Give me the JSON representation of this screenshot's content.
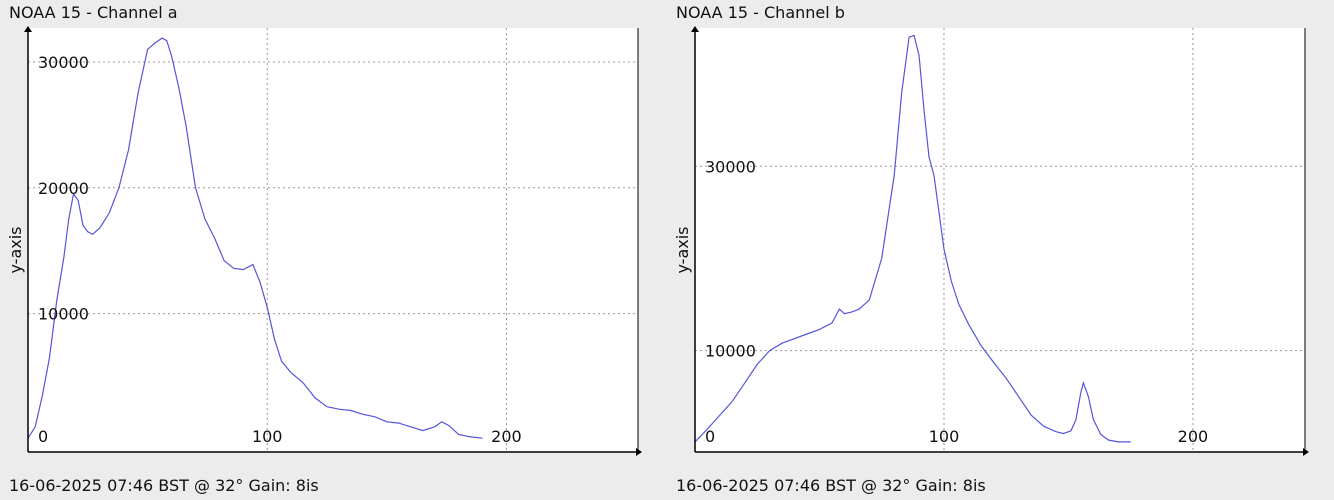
{
  "colors": {
    "background": "#ececec",
    "plot_bg": "#ffffff",
    "series": "#5555dd",
    "grid": "#999999",
    "axis": "#000000"
  },
  "chart_data": [
    {
      "type": "line",
      "title": "NOAA 15 - Channel a",
      "xlabel": "",
      "ylabel": "y-axis",
      "footer": "16-06-2025 07:46 BST @ 32° Gain: 8is",
      "xlim": [
        0,
        255
      ],
      "ylim": [
        -1000,
        32700
      ],
      "x_ticks": [
        0,
        100,
        200
      ],
      "y_ticks": [
        10000,
        20000,
        30000
      ],
      "grid": true,
      "series": [
        {
          "x": [
            0,
            3,
            6,
            9,
            12,
            15,
            17,
            19,
            21,
            23,
            25,
            27,
            30,
            34,
            38,
            42,
            46,
            50,
            53,
            56,
            58,
            60,
            63,
            66,
            70,
            74,
            78,
            82,
            86,
            90,
            94,
            97,
            100,
            103,
            106,
            110,
            115,
            120,
            125,
            130,
            135,
            140,
            145,
            150,
            155,
            160,
            165,
            170,
            173,
            176,
            180,
            185,
            190
          ],
          "y": [
            100,
            1000,
            3500,
            6500,
            11000,
            14500,
            17500,
            19500,
            19000,
            17000,
            16500,
            16300,
            16800,
            18000,
            20000,
            23000,
            27500,
            31000,
            31500,
            31900,
            31700,
            30500,
            28000,
            25000,
            20000,
            17500,
            16000,
            14200,
            13600,
            13500,
            13900,
            12500,
            10500,
            8000,
            6200,
            5300,
            4500,
            3300,
            2600,
            2400,
            2300,
            2000,
            1800,
            1400,
            1300,
            1000,
            700,
            1000,
            1400,
            1100,
            400,
            200,
            100
          ]
        }
      ]
    },
    {
      "type": "line",
      "title": "NOAA 15 - Channel b",
      "xlabel": "",
      "ylabel": "y-axis",
      "footer": "16-06-2025 07:46 BST @ 32° Gain: 8is",
      "xlim": [
        0,
        245
      ],
      "ylim": [
        -1000,
        45000
      ],
      "x_ticks": [
        0,
        100,
        200
      ],
      "y_ticks": [
        10000,
        30000
      ],
      "grid": true,
      "series": [
        {
          "x": [
            0,
            5,
            10,
            15,
            20,
            25,
            30,
            35,
            40,
            45,
            50,
            55,
            58,
            60,
            63,
            66,
            70,
            75,
            80,
            83,
            86,
            88,
            90,
            92,
            94,
            96,
            98,
            100,
            103,
            106,
            110,
            115,
            120,
            125,
            130,
            135,
            140,
            145,
            148,
            151,
            153,
            155,
            156,
            158,
            160,
            163,
            166,
            170,
            175
          ],
          "y": [
            100,
            1500,
            3000,
            4500,
            6500,
            8500,
            10000,
            10800,
            11300,
            11800,
            12300,
            13000,
            14500,
            14000,
            14200,
            14500,
            15500,
            20000,
            29000,
            38000,
            44000,
            44200,
            42000,
            36000,
            31000,
            29000,
            25000,
            21000,
            17500,
            15000,
            12800,
            10500,
            8700,
            7000,
            5000,
            3000,
            1800,
            1200,
            1000,
            1300,
            2500,
            5500,
            6500,
            5000,
            2500,
            900,
            300,
            100,
            100
          ]
        }
      ]
    }
  ]
}
